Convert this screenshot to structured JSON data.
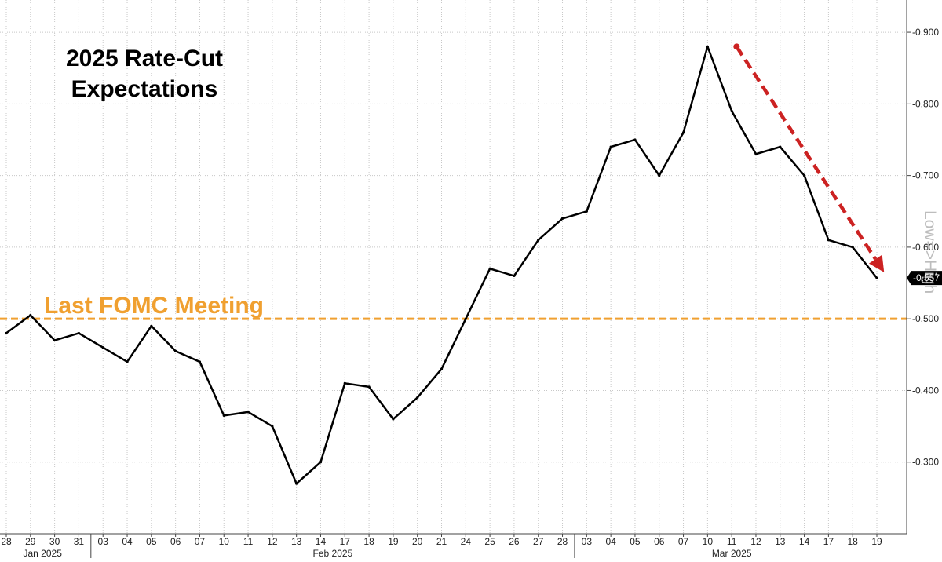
{
  "chart_data": {
    "type": "line",
    "title_lines": [
      "2025 Rate-Cut",
      "Expectations"
    ],
    "scale_note": "Low=>High",
    "y_ticks": [
      -0.9,
      -0.8,
      -0.7,
      -0.6,
      -0.5,
      -0.4,
      -0.3
    ],
    "y_tick_labels": [
      "-0.900",
      "-0.800",
      "-0.700",
      "-0.600",
      "-0.500",
      "-0.400",
      "-0.300"
    ],
    "ylim": [
      -0.2,
      -0.945
    ],
    "y_axis_inverted": true,
    "grid": true,
    "x_days": [
      "28",
      "29",
      "30",
      "31",
      "03",
      "04",
      "05",
      "06",
      "07",
      "10",
      "11",
      "12",
      "13",
      "14",
      "17",
      "18",
      "19",
      "20",
      "21",
      "24",
      "25",
      "26",
      "27",
      "28",
      "03",
      "04",
      "05",
      "06",
      "07",
      "10",
      "11",
      "12",
      "13",
      "14",
      "17",
      "18",
      "19"
    ],
    "months": [
      {
        "label": "Jan 2025",
        "start_index": 0,
        "end_index": 3
      },
      {
        "label": "Feb 2025",
        "start_index": 4,
        "end_index": 23
      },
      {
        "label": "Mar 2025",
        "start_index": 24,
        "end_index": 36
      }
    ],
    "series": [
      {
        "color": "#000000",
        "values": [
          -0.48,
          -0.505,
          -0.47,
          -0.48,
          -0.46,
          -0.44,
          -0.49,
          -0.455,
          -0.44,
          -0.365,
          -0.37,
          -0.35,
          -0.27,
          -0.3,
          -0.41,
          -0.405,
          -0.36,
          -0.39,
          -0.43,
          -0.5,
          -0.57,
          -0.56,
          -0.61,
          -0.64,
          -0.65,
          -0.74,
          -0.75,
          -0.7,
          -0.76,
          -0.88,
          -0.79,
          -0.73,
          -0.74,
          -0.7,
          -0.61,
          -0.6,
          -0.557
        ]
      }
    ],
    "last_value_label": "-0.557",
    "reference_line": {
      "label": "Last FOMC Meeting",
      "y": -0.5,
      "color": "#f0a030",
      "style": "dashed"
    },
    "trend_arrow": {
      "from": {
        "x_index": 30.2,
        "y": -0.88
      },
      "to": {
        "x_index": 36.3,
        "y": -0.565
      },
      "color": "#cc2222"
    }
  }
}
